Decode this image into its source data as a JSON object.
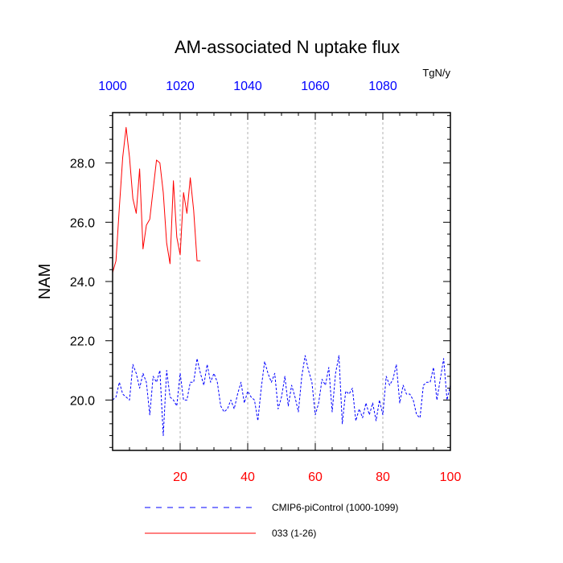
{
  "chart_data": {
    "type": "line",
    "title": "AM-associated N uptake flux",
    "ylabel": "NAM",
    "units": "TgN/y",
    "x_bottom": {
      "range": [
        0,
        100
      ],
      "ticks": [
        20,
        40,
        60,
        80,
        100
      ],
      "tick_labels": [
        "20",
        "40",
        "60",
        "80",
        "100"
      ],
      "color": "#ff0000"
    },
    "x_top": {
      "range": [
        1000,
        1100
      ],
      "ticks": [
        1000,
        1020,
        1040,
        1060,
        1080
      ],
      "tick_labels": [
        "1000",
        "1020",
        "1040",
        "1060",
        "1080"
      ],
      "color": "#0000ff"
    },
    "y": {
      "range": [
        18.3,
        29.7
      ],
      "ticks": [
        20,
        22,
        24,
        26,
        28
      ],
      "tick_labels": [
        "20.0",
        "22.0",
        "24.0",
        "26.0",
        "28.0"
      ]
    },
    "grid": "vertical dashed at 20, 40, 60, 80",
    "legend": "bottom",
    "series": [
      {
        "name": "CMIP6-piControl (1000-1099)",
        "color": "#0000ff",
        "style": "dashed",
        "axis": "top",
        "x": [
          1000,
          1001,
          1002,
          1003,
          1004,
          1005,
          1006,
          1007,
          1008,
          1009,
          1010,
          1011,
          1012,
          1013,
          1014,
          1015,
          1016,
          1017,
          1018,
          1019,
          1020,
          1021,
          1022,
          1023,
          1024,
          1025,
          1026,
          1027,
          1028,
          1029,
          1030,
          1031,
          1032,
          1033,
          1034,
          1035,
          1036,
          1037,
          1038,
          1039,
          1040,
          1041,
          1042,
          1043,
          1044,
          1045,
          1046,
          1047,
          1048,
          1049,
          1050,
          1051,
          1052,
          1053,
          1054,
          1055,
          1056,
          1057,
          1058,
          1059,
          1060,
          1061,
          1062,
          1063,
          1064,
          1065,
          1066,
          1067,
          1068,
          1069,
          1070,
          1071,
          1072,
          1073,
          1074,
          1075,
          1076,
          1077,
          1078,
          1079,
          1080,
          1081,
          1082,
          1083,
          1084,
          1085,
          1086,
          1087,
          1088,
          1089,
          1090,
          1091,
          1092,
          1093,
          1094,
          1095,
          1096,
          1097,
          1098,
          1099,
          1100
        ],
        "values": [
          20.0,
          20.1,
          20.6,
          20.2,
          20.1,
          20.0,
          21.2,
          20.9,
          20.4,
          20.9,
          20.6,
          19.5,
          20.8,
          20.6,
          21.0,
          18.8,
          21.0,
          20.1,
          20.0,
          19.8,
          20.9,
          20.0,
          20.0,
          20.6,
          20.6,
          21.4,
          20.9,
          20.5,
          21.2,
          20.6,
          20.9,
          20.6,
          19.8,
          19.6,
          19.7,
          20.0,
          19.7,
          20.2,
          20.6,
          19.9,
          20.3,
          20.1,
          20.0,
          19.3,
          20.4,
          21.3,
          20.9,
          20.6,
          20.9,
          19.7,
          20.1,
          20.8,
          19.8,
          20.5,
          20.1,
          19.6,
          20.8,
          21.5,
          21.0,
          20.6,
          19.5,
          19.9,
          20.7,
          20.5,
          21.1,
          19.6,
          20.9,
          21.5,
          19.2,
          20.3,
          20.2,
          20.4,
          19.3,
          19.7,
          19.4,
          19.9,
          19.5,
          19.9,
          19.3,
          20.0,
          19.5,
          20.8,
          20.5,
          20.7,
          21.2,
          19.9,
          20.5,
          20.2,
          20.2,
          20.0,
          19.5,
          19.4,
          20.5,
          20.6,
          20.6,
          21.1,
          20.0,
          20.7,
          21.4,
          20.0,
          20.5
        ]
      },
      {
        "name": "033 (1-26)",
        "color": "#ff0000",
        "style": "solid",
        "axis": "bottom",
        "x": [
          0,
          1,
          2,
          3,
          4,
          5,
          6,
          7,
          8,
          9,
          10,
          11,
          12,
          13,
          14,
          15,
          16,
          17,
          18,
          19,
          20,
          21,
          22,
          23,
          24,
          25,
          26
        ],
        "values": [
          24.3,
          24.7,
          26.5,
          28.2,
          29.2,
          28.2,
          26.8,
          26.3,
          27.8,
          25.1,
          25.9,
          26.1,
          27.1,
          28.1,
          28.0,
          27.0,
          25.3,
          24.6,
          27.4,
          25.5,
          24.9,
          27.0,
          26.3,
          27.5,
          26.4,
          24.7,
          24.7
        ]
      }
    ]
  }
}
